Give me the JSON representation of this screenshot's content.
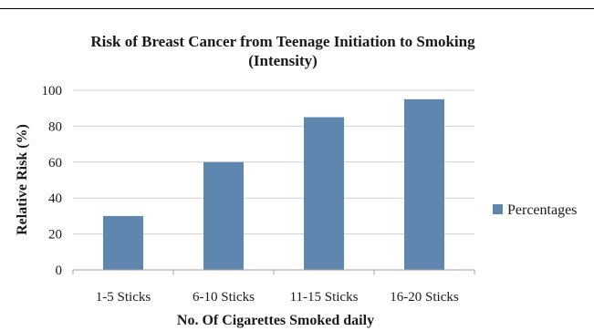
{
  "chart_data": {
    "type": "bar",
    "title": "Risk of Breast Cancer from Teenage Initiation to Smoking",
    "subtitle": "(Intensity)",
    "xlabel": "No. Of Cigarettes Smoked daily",
    "ylabel": "Relative Risk (%)",
    "categories": [
      "1-5 Sticks",
      "6-10 Sticks",
      "11-15 Sticks",
      "16-20 Sticks"
    ],
    "series": [
      {
        "name": "Percentages",
        "values": [
          30,
          60,
          85,
          95
        ]
      }
    ],
    "ylim": [
      0,
      100
    ],
    "yticks": [
      "0",
      "20",
      "40",
      "60",
      "80",
      "100"
    ],
    "grid": true,
    "legend": "right",
    "colors": {
      "bar": "#5f86ae",
      "grid": "#d0d0d0",
      "axis": "#a0a0a0"
    }
  }
}
